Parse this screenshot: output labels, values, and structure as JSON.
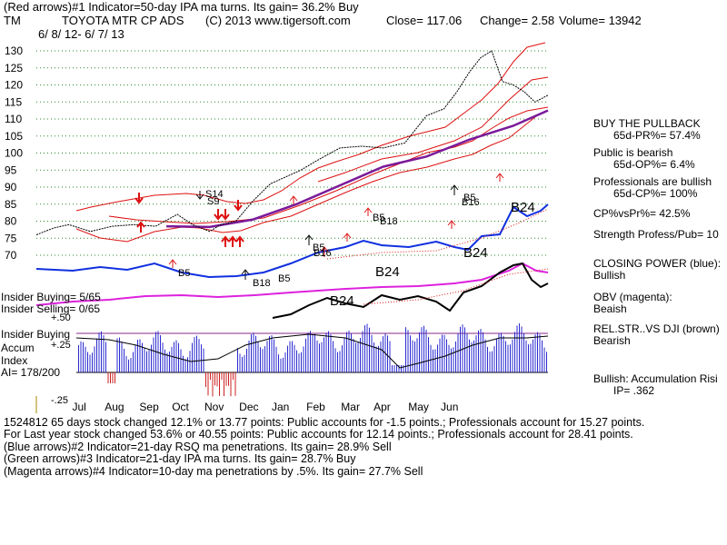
{
  "header": {
    "line1": "(Red arrows)#1 Indicator=50-day IPA ma turns. Its gain= 36.2% Buy",
    "ticker": "TM",
    "company": "TOYOTA MTR CP ADS",
    "copyright": "(C) 2013 www.tigersoft.com",
    "close": "Close= 117.06",
    "change": "Change= 2.58",
    "volume": "Volume= 13942",
    "date_range": "6/ 8/ 12- 6/ 7/ 13"
  },
  "right_panel": {
    "buy_title": "BUY THE PULLBACK",
    "pr": "65d-PR%= 57.4%",
    "public_bearish": "Public is bearish",
    "op": "65d-OP%= 6.4%",
    "pros_bullish": "Professionals are bullish",
    "cp": "65d-CP%= 100%",
    "cp_vs_pr": "CP%vsPr%= 42.5%",
    "strength": "Strength Profess/Pub= 10",
    "closing_power_label": "CLOSING POWER (blue):",
    "closing_power_value": "Bullish",
    "obv_label": "OBV (magenta):",
    "obv_value": "Beaish",
    "relstr_label": "REL.STR..VS DJI (brown)",
    "relstr_value": "Bearish",
    "bullish_accum": "Bullish: Accumulation Risi",
    "ip": "IP= .362"
  },
  "left_labels": {
    "insider_buying": "Insider Buying= 5/65",
    "insider_selling": "Insider Selling= 0/65",
    "accum1": "Insider Buying",
    "accum2": "Accum",
    "accum3": "Index",
    "ai": "AI= 178/200",
    "plus50": "+.50",
    "plus25": "+.25",
    "minus25": "-.25"
  },
  "footer": {
    "line1": "1524812 65 days stock changed 12.1% or 13.77 points: Public accounts for -1.5 points.; Professionals account for 15.27 points.",
    "line2": "For Last year stock changed 53.6% or 40.55 points: Public accounts for 12.14 points.; Professionals account for 28.41 points.",
    "line3": "(Blue arrows)#2 Indicator=21-day RSQ ma penetrations. Its gain= 28.9% Sell",
    "line4": "(Green arrows)#3 Indicator=21-day IPA ma turns. Its gain= 28.7% Buy",
    "line5": "(Magenta arrows)#4 Indicator=10-day ma penetrations by .5%. Its gain= 27.7% Sell"
  },
  "chart_data": {
    "type": "line",
    "title": "TOYOTA MTR CP ADS",
    "y_ticks": [
      130,
      125,
      120,
      115,
      110,
      105,
      100,
      95,
      90,
      85,
      80,
      75,
      70
    ],
    "ylim": [
      70,
      130
    ],
    "x_months": [
      "Jul",
      "Aug",
      "Sep",
      "Oct",
      "Nov",
      "Dec",
      "Jan",
      "Feb",
      "Mar",
      "Apr",
      "May",
      "Jun"
    ],
    "signal_labels": [
      "S14",
      "S9",
      "B5",
      "B18",
      "B5",
      "B16",
      "B5",
      "B18",
      "B5",
      "B16",
      "B24",
      "B24",
      "B5",
      "B18",
      "B5",
      "B24",
      "B24"
    ],
    "price_series": {
      "name": "Price",
      "x": [
        0,
        8,
        15,
        25,
        35,
        45,
        55,
        65,
        72,
        80,
        85,
        92,
        100,
        108,
        115,
        122,
        130,
        140,
        150,
        160,
        170,
        180,
        188,
        194,
        200,
        205,
        210,
        215,
        220,
        225,
        230,
        236
      ],
      "values": [
        76,
        78,
        79,
        77,
        78.5,
        79,
        78.5,
        82,
        79,
        77,
        79,
        80,
        86,
        91,
        93,
        95,
        98,
        101.5,
        102,
        101.5,
        103,
        111,
        113,
        118,
        124,
        128,
        130,
        121,
        120,
        118,
        115,
        117
      ]
    },
    "ma50_series": {
      "name": "50-day MA",
      "x": [
        60,
        80,
        100,
        120,
        140,
        160,
        180,
        200,
        220,
        236
      ],
      "values": [
        78.5,
        78.3,
        80.5,
        85,
        90.5,
        96,
        99,
        104,
        108,
        112.5
      ]
    },
    "month_x": [
      9,
      24,
      40,
      55,
      70,
      86,
      101,
      117,
      133,
      148,
      164,
      179
    ],
    "accum_ylim": [
      -0.25,
      0.5
    ]
  }
}
